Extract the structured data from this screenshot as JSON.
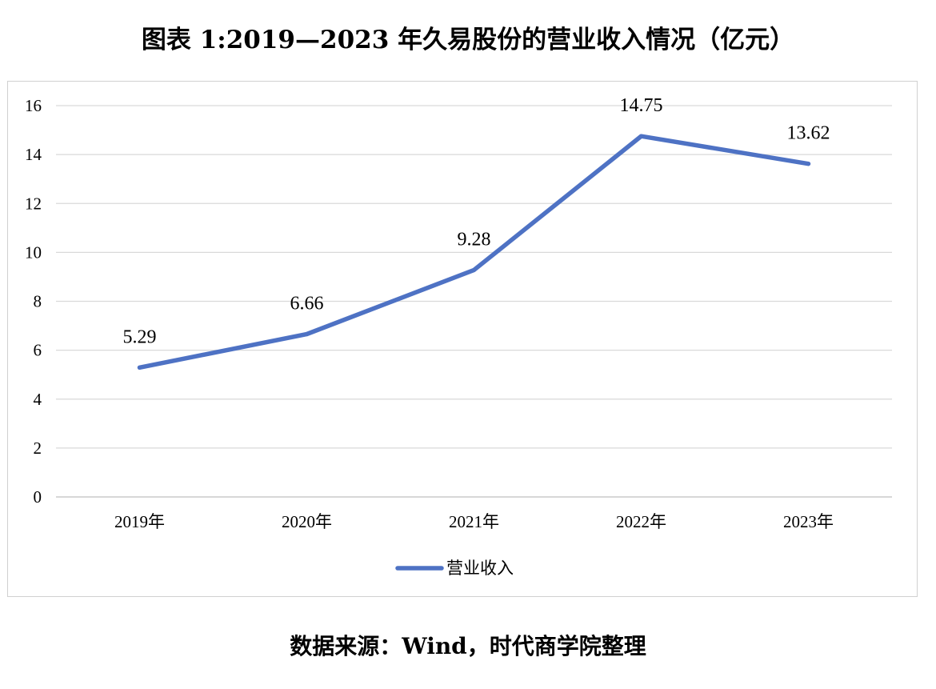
{
  "title": "图表 1:2019—2023 年久易股份的营业收入情况（亿元）",
  "source": "数据来源：Wind，时代商学院整理",
  "chart_data": {
    "type": "line",
    "categories": [
      "2019年",
      "2020年",
      "2021年",
      "2022年",
      "2023年"
    ],
    "series": [
      {
        "name": "营业收入",
        "values": [
          5.29,
          6.66,
          9.28,
          14.75,
          13.62
        ],
        "data_labels": [
          "5.29",
          "6.66",
          "9.28",
          "14.75",
          "13.62"
        ],
        "color": "#4e72c4"
      }
    ],
    "ylim": [
      0,
      16
    ],
    "yticks": [
      0,
      2,
      4,
      6,
      8,
      10,
      12,
      14,
      16
    ],
    "grid": true,
    "legend": "bottom"
  }
}
